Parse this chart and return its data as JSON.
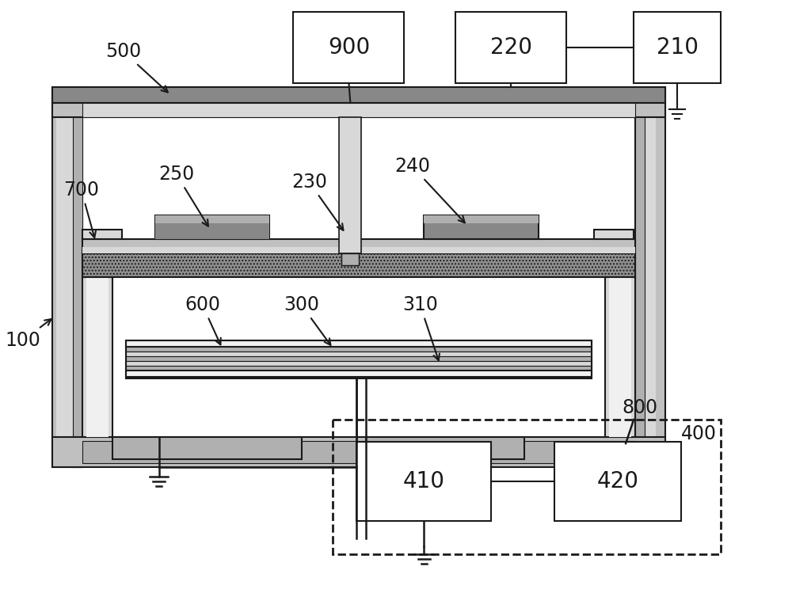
{
  "bg": "#ffffff",
  "lc": "#1a1a1a",
  "g_light": "#d8d8d8",
  "g_med": "#b0b0b0",
  "g_dark": "#888888",
  "g_fill": "#c0c0c0",
  "g_white": "#f0f0f0",
  "g_stripe": "#a0a0a0",
  "lw": 1.5,
  "fs": 17
}
